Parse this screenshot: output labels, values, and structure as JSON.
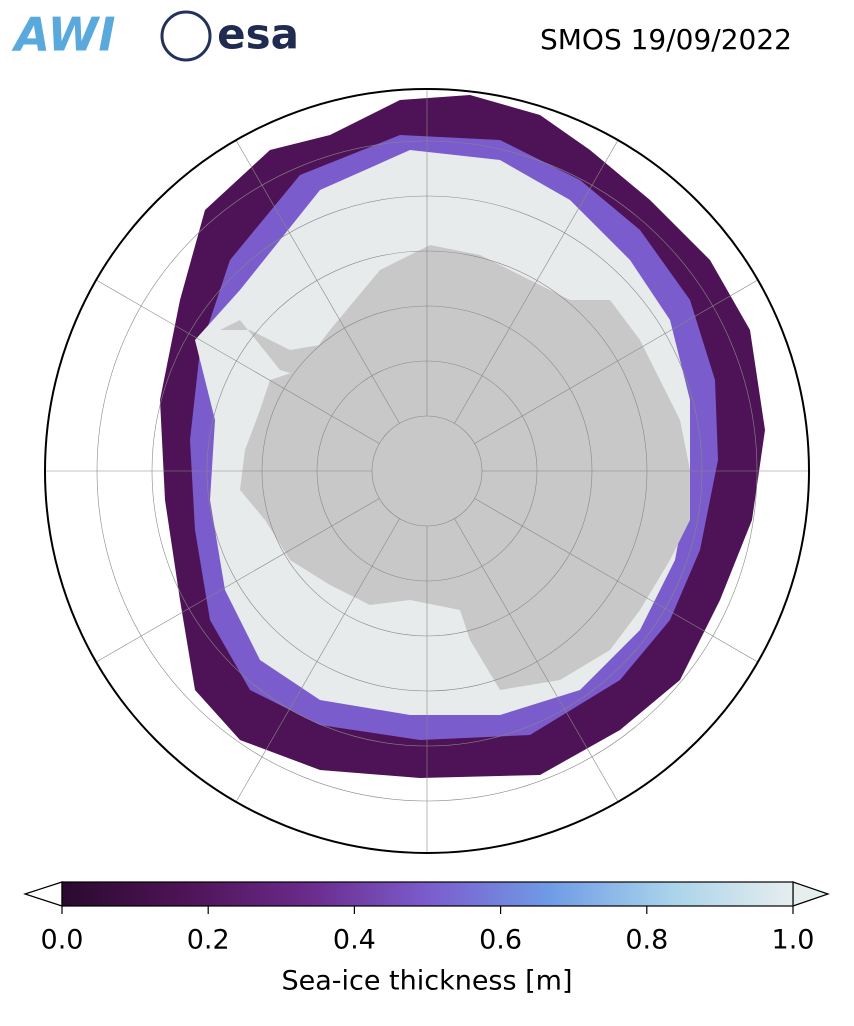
{
  "header": {
    "logos": [
      "AWI",
      "esa"
    ],
    "title": "SMOS 19/09/2022"
  },
  "colorbar": {
    "label": "Sea-ice thickness [m]",
    "lim": [
      0,
      1
    ],
    "ticks": [
      {
        "value": 0,
        "label": "0.0"
      },
      0.2,
      0.4,
      0.6,
      0.8,
      {
        "value": 1,
        "label": "1.0"
      }
    ],
    "colors": [
      "#2a0a2e",
      "#4e1356",
      "#6a2a8a",
      "#7b5ccc",
      "#6f9be6",
      "#a9d3ea",
      "#e6eeee"
    ]
  }
}
